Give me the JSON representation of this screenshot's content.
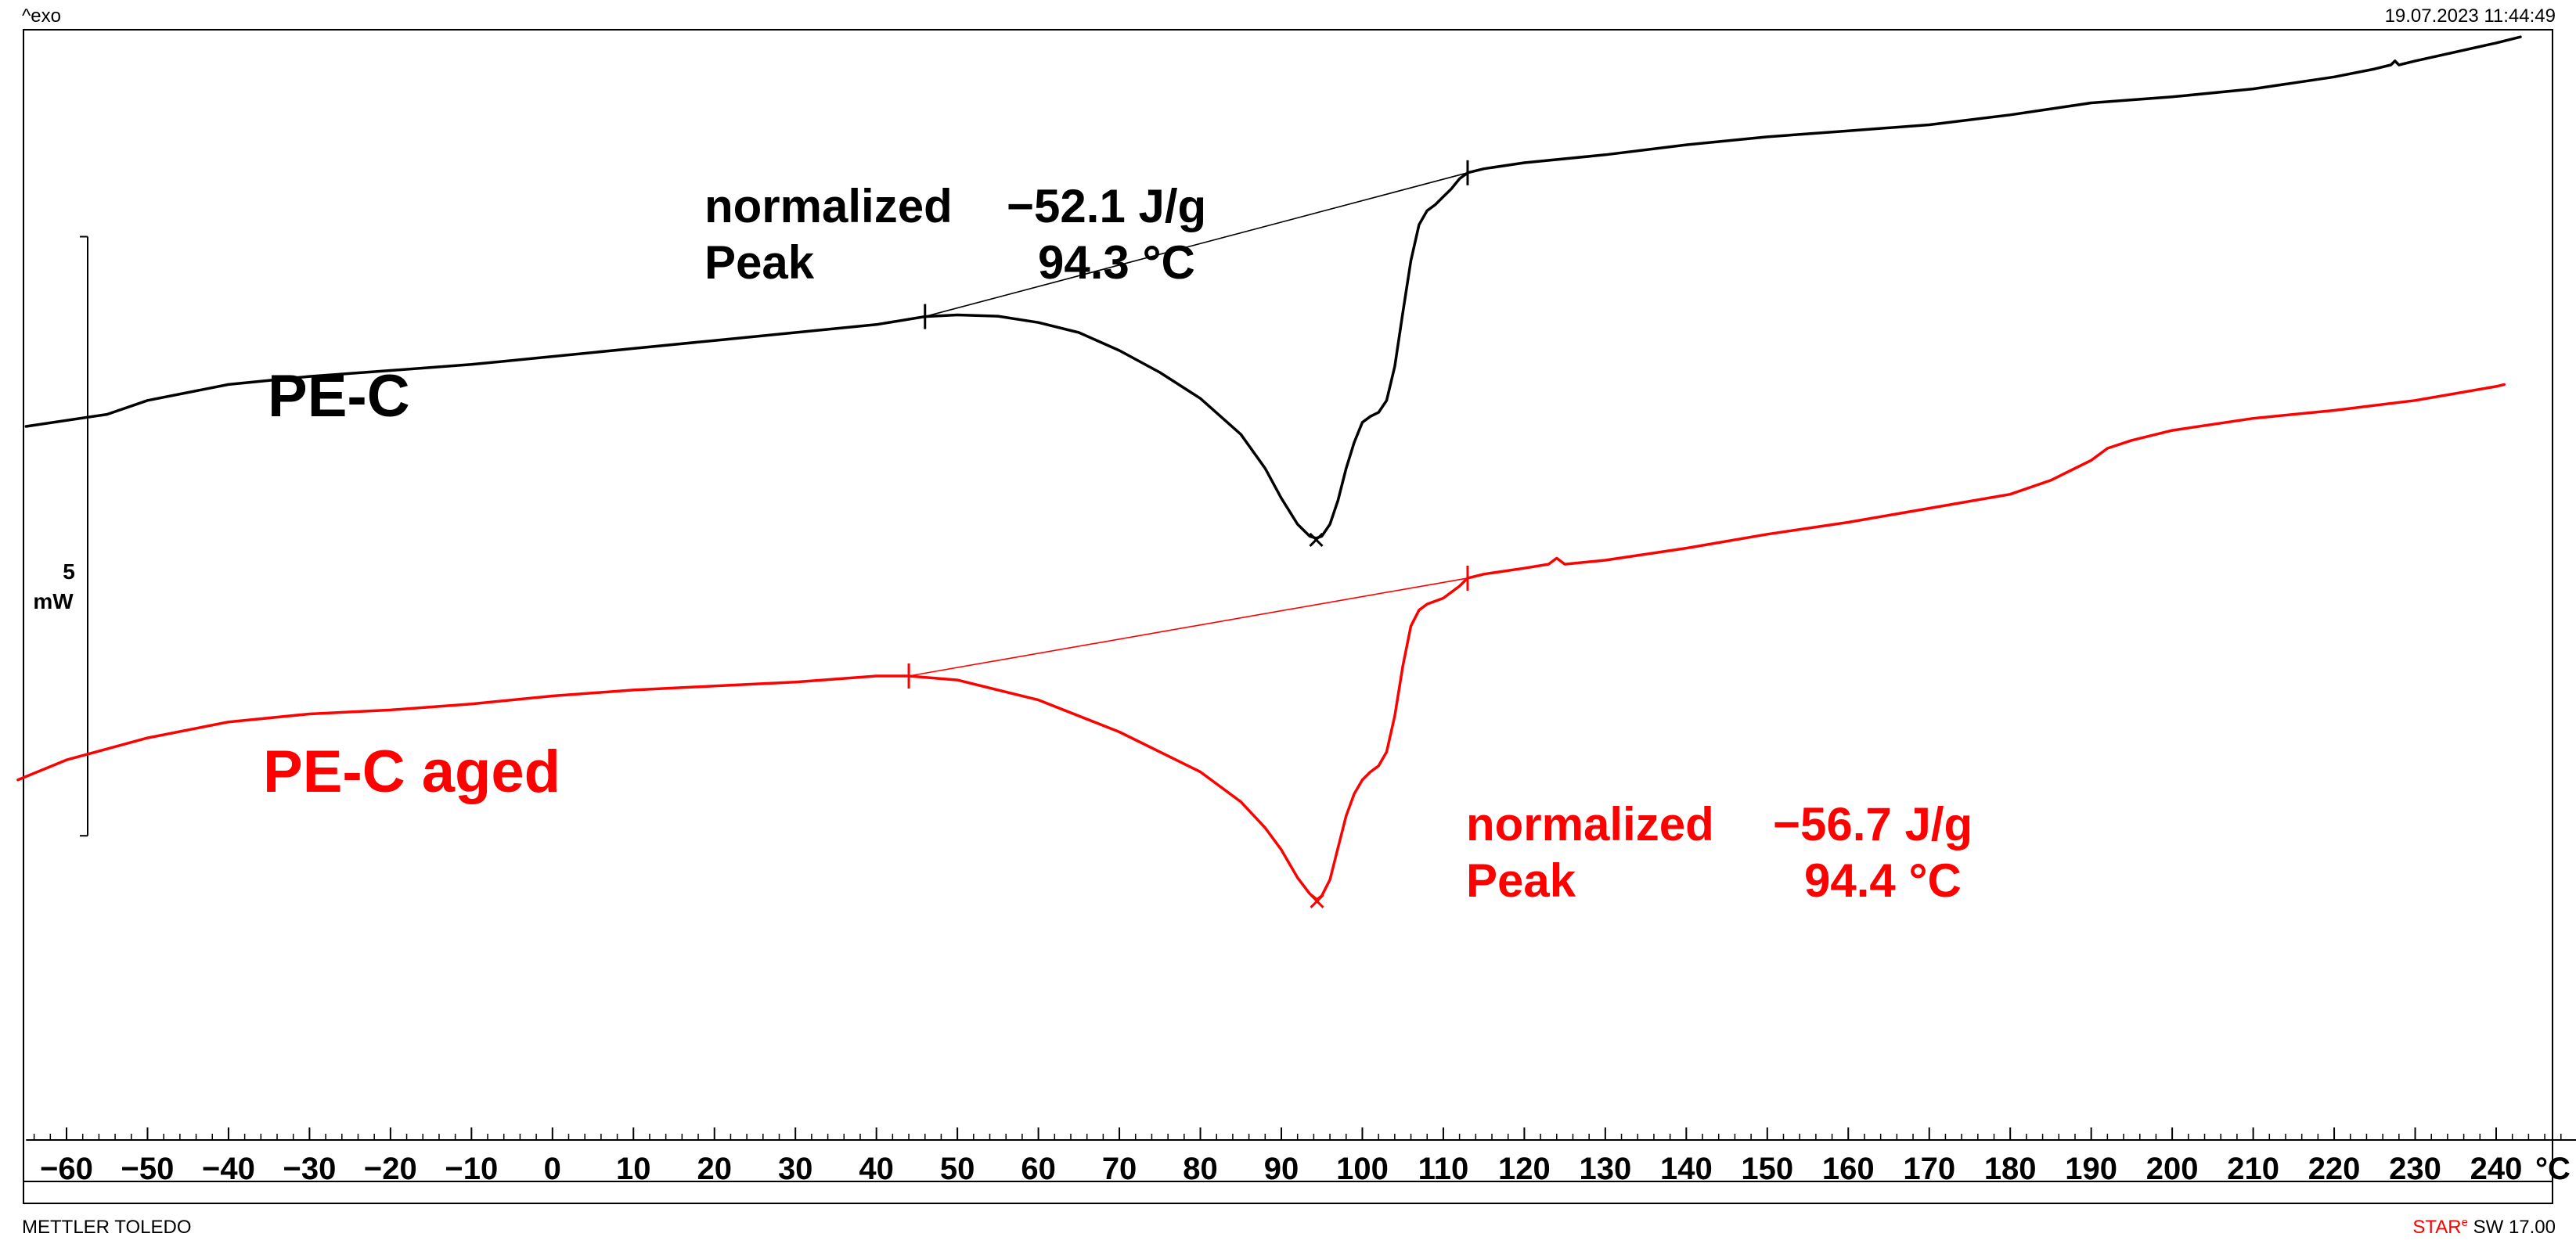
{
  "header": {
    "left": "^exo",
    "right": "19.07.2023 11:44:49"
  },
  "footer": {
    "left": "METTLER TOLEDO",
    "right_brand": "STAR",
    "right_mark": "e",
    "right_version": "SW 17.00"
  },
  "colors": {
    "series1": "#000000",
    "series2": "#ff0000",
    "axis": "#000000",
    "background": "#ffffff"
  },
  "chart_data": {
    "type": "line",
    "title": "",
    "xlabel": "",
    "ylabel": "",
    "x_unit": "°C",
    "xlim": [
      -65,
      250
    ],
    "x_ticks": [
      -60,
      -50,
      -40,
      -30,
      -20,
      -10,
      0,
      10,
      20,
      30,
      40,
      50,
      60,
      70,
      80,
      90,
      100,
      110,
      120,
      130,
      140,
      150,
      160,
      170,
      180,
      190,
      200,
      210,
      220,
      230,
      240
    ],
    "x_minor_step": 2,
    "y_unit_rel": "mW, relative heat flow (exo up)",
    "ylim": [
      -33,
      19.5
    ],
    "scale_bar": {
      "value": "5",
      "unit": "mW",
      "from": -20,
      "to": 10
    },
    "legend": "none",
    "grid": false,
    "series": [
      {
        "name": "PE-C",
        "color": "#000000",
        "points": [
          [
            -65,
            0.5
          ],
          [
            -55,
            1.1
          ],
          [
            -50,
            1.8
          ],
          [
            -40,
            2.6
          ],
          [
            -30,
            3.0
          ],
          [
            -20,
            3.3
          ],
          [
            -10,
            3.6
          ],
          [
            0,
            4.0
          ],
          [
            10,
            4.4
          ],
          [
            20,
            4.8
          ],
          [
            30,
            5.2
          ],
          [
            40,
            5.6
          ],
          [
            46,
            6.0
          ],
          [
            50,
            6.08
          ],
          [
            55,
            6.02
          ],
          [
            60,
            5.7
          ],
          [
            65,
            5.2
          ],
          [
            70,
            4.3
          ],
          [
            75,
            3.2
          ],
          [
            80,
            1.9
          ],
          [
            85,
            0.1
          ],
          [
            88,
            -1.6
          ],
          [
            90,
            -3.1
          ],
          [
            92,
            -4.4
          ],
          [
            93.5,
            -5.0
          ],
          [
            94.3,
            -5.1
          ],
          [
            95,
            -5.0
          ],
          [
            96,
            -4.4
          ],
          [
            97,
            -3.2
          ],
          [
            98,
            -1.6
          ],
          [
            99,
            -0.3
          ],
          [
            100,
            0.7
          ],
          [
            101,
            1.0
          ],
          [
            102,
            1.2
          ],
          [
            103,
            1.8
          ],
          [
            104,
            3.5
          ],
          [
            105,
            6.2
          ],
          [
            106,
            8.8
          ],
          [
            107,
            10.6
          ],
          [
            108,
            11.3
          ],
          [
            109,
            11.6
          ],
          [
            110,
            12.0
          ],
          [
            111,
            12.4
          ],
          [
            112,
            12.9
          ],
          [
            113,
            13.2
          ],
          [
            115,
            13.4
          ],
          [
            120,
            13.7
          ],
          [
            130,
            14.1
          ],
          [
            140,
            14.6
          ],
          [
            150,
            15.0
          ],
          [
            160,
            15.3
          ],
          [
            170,
            15.6
          ],
          [
            180,
            16.1
          ],
          [
            190,
            16.7
          ],
          [
            200,
            17.0
          ],
          [
            210,
            17.4
          ],
          [
            220,
            18.0
          ],
          [
            225,
            18.4
          ],
          [
            227,
            18.6
          ],
          [
            227.5,
            18.8
          ],
          [
            228,
            18.6
          ],
          [
            230,
            18.8
          ],
          [
            240,
            19.7
          ],
          [
            243,
            20.0
          ]
        ]
      },
      {
        "name": "PE-C aged",
        "color": "#ff0000",
        "points": [
          [
            -66,
            -17.2
          ],
          [
            -60,
            -16.2
          ],
          [
            -50,
            -15.1
          ],
          [
            -40,
            -14.3
          ],
          [
            -30,
            -13.9
          ],
          [
            -20,
            -13.7
          ],
          [
            -10,
            -13.4
          ],
          [
            0,
            -13.0
          ],
          [
            10,
            -12.7
          ],
          [
            20,
            -12.5
          ],
          [
            30,
            -12.3
          ],
          [
            40,
            -12.0
          ],
          [
            44,
            -12.0
          ],
          [
            50,
            -12.2
          ],
          [
            60,
            -13.2
          ],
          [
            70,
            -14.8
          ],
          [
            80,
            -16.8
          ],
          [
            85,
            -18.3
          ],
          [
            88,
            -19.6
          ],
          [
            90,
            -20.7
          ],
          [
            92,
            -22.1
          ],
          [
            93.5,
            -22.9
          ],
          [
            94.4,
            -23.2
          ],
          [
            95,
            -23.0
          ],
          [
            96,
            -22.2
          ],
          [
            97,
            -20.6
          ],
          [
            98,
            -19.0
          ],
          [
            99,
            -17.9
          ],
          [
            100,
            -17.2
          ],
          [
            101,
            -16.8
          ],
          [
            102,
            -16.5
          ],
          [
            103,
            -15.8
          ],
          [
            104,
            -14.0
          ],
          [
            105,
            -11.5
          ],
          [
            106,
            -9.5
          ],
          [
            107,
            -8.7
          ],
          [
            108,
            -8.4
          ],
          [
            110,
            -8.1
          ],
          [
            112,
            -7.5
          ],
          [
            113,
            -7.1
          ],
          [
            115,
            -6.9
          ],
          [
            120,
            -6.6
          ],
          [
            123,
            -6.4
          ],
          [
            124,
            -6.1
          ],
          [
            125,
            -6.4
          ],
          [
            130,
            -6.2
          ],
          [
            140,
            -5.6
          ],
          [
            150,
            -4.9
          ],
          [
            160,
            -4.3
          ],
          [
            170,
            -3.6
          ],
          [
            180,
            -2.9
          ],
          [
            185,
            -2.2
          ],
          [
            190,
            -1.2
          ],
          [
            192,
            -0.6
          ],
          [
            195,
            -0.2
          ],
          [
            200,
            0.3
          ],
          [
            210,
            0.9
          ],
          [
            220,
            1.3
          ],
          [
            230,
            1.8
          ],
          [
            240,
            2.5
          ],
          [
            241,
            2.6
          ]
        ]
      }
    ],
    "baselines": [
      {
        "series": "PE-C",
        "from": [
          46,
          6.0
        ],
        "to": [
          113,
          13.2
        ]
      },
      {
        "series": "PE-C aged",
        "from": [
          44,
          -12.0
        ],
        "to": [
          113,
          -7.1
        ]
      }
    ],
    "peak_markers": [
      {
        "series": "PE-C",
        "x": 94.3,
        "y": -5.1
      },
      {
        "series": "PE-C aged",
        "x": 94.4,
        "y": -23.2
      }
    ],
    "annotations": [
      {
        "series": "PE-C",
        "lines": [
          {
            "label": "normalized",
            "value": "−52.1 J/g"
          },
          {
            "label": "Peak",
            "value": "94.3 °C"
          }
        ]
      },
      {
        "series": "PE-C aged",
        "lines": [
          {
            "label": "normalized",
            "value": "−56.7 J/g"
          },
          {
            "label": "Peak",
            "value": "94.4 °C"
          }
        ]
      }
    ]
  }
}
